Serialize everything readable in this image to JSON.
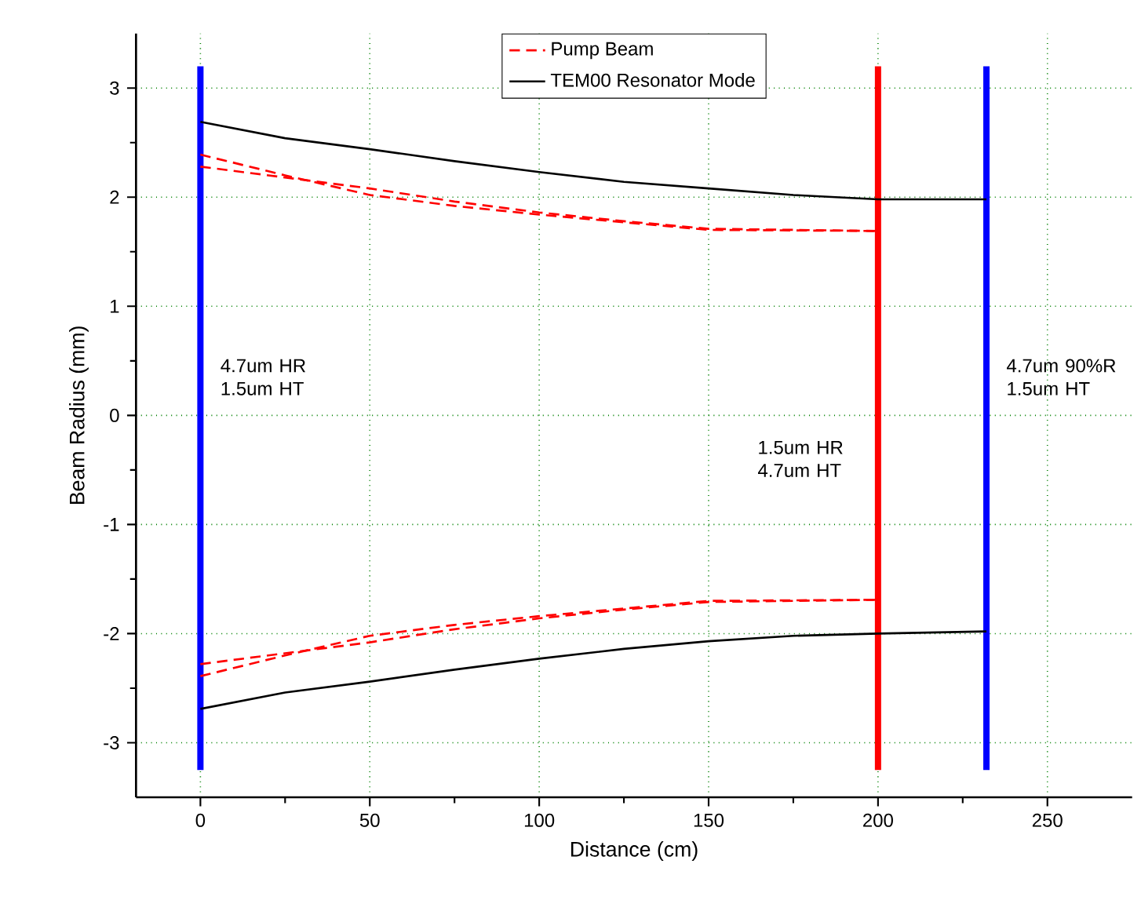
{
  "chart_data": {
    "type": "line",
    "xlabel": "Distance (cm)",
    "ylabel": "Beam Radius (mm)",
    "xlim": [
      -19,
      275
    ],
    "ylim": [
      -3.5,
      3.5
    ],
    "xticks": [
      0,
      50,
      100,
      150,
      200,
      250
    ],
    "yticks": [
      -3,
      -2,
      -1,
      0,
      1,
      2,
      3
    ],
    "grid": true,
    "legend": "top",
    "line_style": "solid",
    "marker": "none",
    "series": [
      {
        "name": "Pump Beam",
        "color": "#ff0000",
        "line_style": "dashed",
        "x": [
          0,
          25,
          50,
          75,
          100,
          125,
          150,
          200
        ],
        "values": [
          2.39,
          2.2,
          2.02,
          1.92,
          1.84,
          1.77,
          1.7,
          1.69
        ]
      },
      {
        "color": "#ff0000",
        "line_style": "dashed",
        "x": [
          0,
          25,
          50,
          75,
          100,
          125,
          150,
          200
        ],
        "values": [
          2.28,
          2.18,
          2.08,
          1.96,
          1.86,
          1.78,
          1.71,
          1.69
        ]
      },
      {
        "color": "#ff0000",
        "line_style": "dashed",
        "x": [
          0,
          25,
          50,
          75,
          100,
          125,
          150,
          200
        ],
        "values": [
          -2.39,
          -2.2,
          -2.02,
          -1.92,
          -1.84,
          -1.77,
          -1.7,
          -1.69
        ]
      },
      {
        "color": "#ff0000",
        "line_style": "dashed",
        "x": [
          0,
          25,
          50,
          75,
          100,
          125,
          150,
          200
        ],
        "values": [
          -2.28,
          -2.18,
          -2.08,
          -1.96,
          -1.86,
          -1.78,
          -1.71,
          -1.69
        ]
      },
      {
        "name": "TEM00 Resonator Mode",
        "color": "#000000",
        "x": [
          0,
          25,
          50,
          75,
          100,
          125,
          150,
          175,
          200,
          232
        ],
        "values": [
          2.69,
          2.54,
          2.44,
          2.33,
          2.23,
          2.14,
          2.08,
          2.02,
          1.98,
          1.98
        ]
      },
      {
        "color": "#000000",
        "x": [
          0,
          25,
          50,
          75,
          100,
          125,
          150,
          175,
          200,
          232
        ],
        "values": [
          -2.69,
          -2.54,
          -2.44,
          -2.33,
          -2.23,
          -2.14,
          -2.07,
          -2.02,
          -2.0,
          -1.98
        ]
      }
    ],
    "ref_lines": [
      {
        "axis": "x",
        "value": 0,
        "label": "4.7um HR 1.5um HT",
        "color": "#0000ff"
      },
      {
        "axis": "x",
        "value": 200,
        "label": "1.5um HR 4.7um HT",
        "color": "#ff0000"
      },
      {
        "axis": "x",
        "value": 232,
        "label": "4.7um 90%R 1.5um HT",
        "color": "#0000ff"
      }
    ]
  }
}
